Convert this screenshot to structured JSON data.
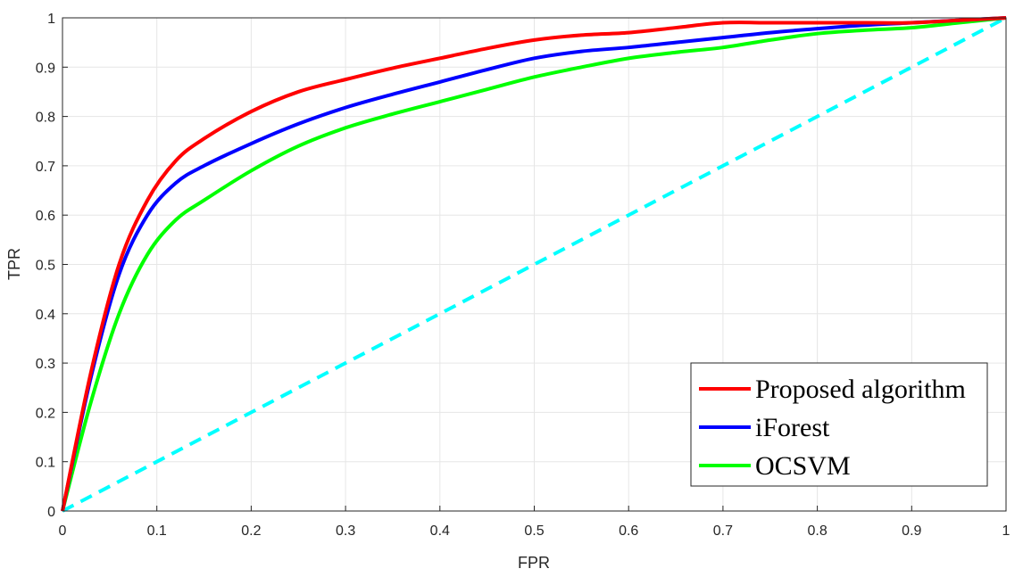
{
  "chart_data": {
    "type": "line",
    "xlabel": "FPR",
    "ylabel": "TPR",
    "xlim": [
      0,
      1
    ],
    "ylim": [
      0,
      1
    ],
    "xticks": [
      "0",
      "0.1",
      "0.2",
      "0.3",
      "0.4",
      "0.5",
      "0.6",
      "0.7",
      "0.8",
      "0.9",
      "1"
    ],
    "yticks": [
      "0",
      "0.1",
      "0.2",
      "0.3",
      "0.4",
      "0.5",
      "0.6",
      "0.7",
      "0.8",
      "0.9",
      "1"
    ],
    "grid": true,
    "legend_position": "bottom-right",
    "series": [
      {
        "name": "Proposed algorithm",
        "color": "#ff0000",
        "style": "solid",
        "x": [
          0,
          0.03,
          0.06,
          0.09,
          0.12,
          0.15,
          0.2,
          0.25,
          0.3,
          0.35,
          0.4,
          0.45,
          0.5,
          0.55,
          0.6,
          0.65,
          0.7,
          0.75,
          0.8,
          0.85,
          0.9,
          0.95,
          1.0
        ],
        "y": [
          0,
          0.28,
          0.5,
          0.63,
          0.71,
          0.755,
          0.81,
          0.85,
          0.875,
          0.898,
          0.918,
          0.938,
          0.955,
          0.965,
          0.97,
          0.98,
          0.99,
          0.99,
          0.99,
          0.99,
          0.99,
          0.995,
          1.0
        ]
      },
      {
        "name": "iForest",
        "color": "#0000ff",
        "style": "solid",
        "x": [
          0,
          0.03,
          0.06,
          0.09,
          0.12,
          0.15,
          0.2,
          0.25,
          0.3,
          0.35,
          0.4,
          0.45,
          0.5,
          0.55,
          0.6,
          0.65,
          0.7,
          0.75,
          0.8,
          0.85,
          0.9,
          0.95,
          1.0
        ],
        "y": [
          0,
          0.27,
          0.48,
          0.6,
          0.665,
          0.7,
          0.745,
          0.785,
          0.818,
          0.845,
          0.87,
          0.895,
          0.918,
          0.932,
          0.94,
          0.95,
          0.96,
          0.97,
          0.978,
          0.985,
          0.99,
          0.995,
          1.0
        ]
      },
      {
        "name": "OCSVM",
        "color": "#00ff00",
        "style": "solid",
        "x": [
          0,
          0.03,
          0.06,
          0.09,
          0.12,
          0.15,
          0.2,
          0.25,
          0.3,
          0.35,
          0.4,
          0.45,
          0.5,
          0.55,
          0.6,
          0.65,
          0.7,
          0.75,
          0.8,
          0.85,
          0.9,
          0.95,
          1.0
        ],
        "y": [
          0,
          0.22,
          0.4,
          0.52,
          0.59,
          0.63,
          0.69,
          0.74,
          0.777,
          0.805,
          0.83,
          0.855,
          0.88,
          0.9,
          0.918,
          0.93,
          0.94,
          0.955,
          0.968,
          0.975,
          0.98,
          0.99,
          1.0
        ]
      },
      {
        "color": "#00ffff",
        "style": "dashed",
        "x": [
          0,
          1
        ],
        "y": [
          0,
          1
        ]
      }
    ]
  }
}
